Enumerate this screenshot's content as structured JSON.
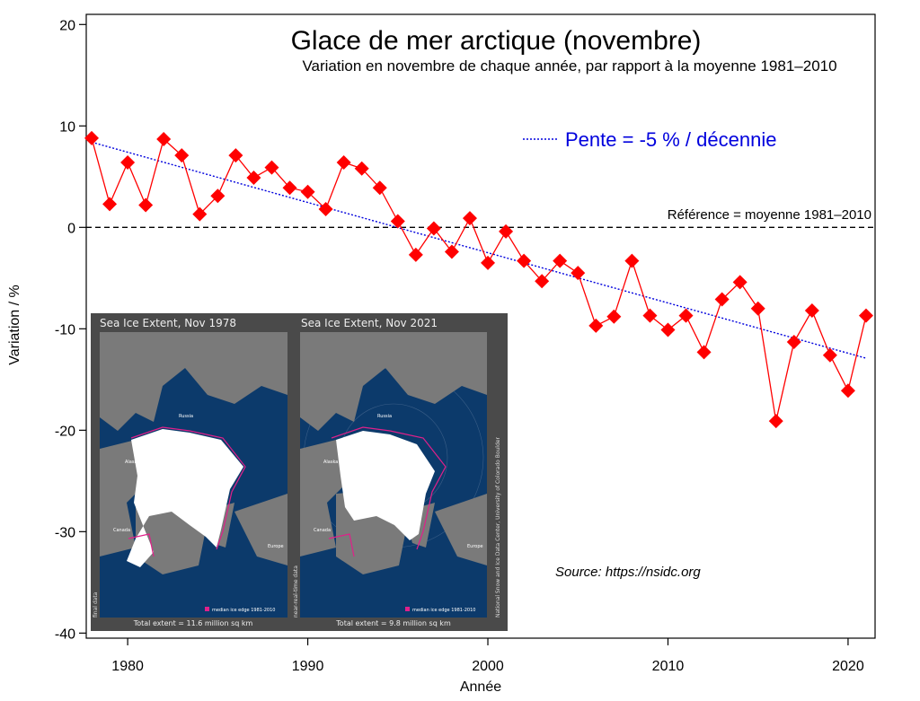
{
  "chart_data": {
    "type": "line",
    "title": "Glace de mer arctique (novembre)",
    "subtitle": "Variation en novembre de chaque année, par rapport à la moyenne 1981–2010",
    "xlabel": "Année",
    "ylabel": "Variation / %",
    "xlim": [
      1977.7,
      2021.5
    ],
    "ylim": [
      -40.5,
      21
    ],
    "x_ticks": [
      1980,
      1990,
      2000,
      2010,
      2020
    ],
    "y_ticks": [
      20,
      10,
      0,
      -10,
      -20,
      -30,
      -40
    ],
    "grid": false,
    "colors": {
      "series": "#ff0000",
      "trend": "#0000dd",
      "reference": "#000000"
    },
    "series": [
      {
        "years": [
          1978,
          1979,
          1980,
          1981,
          1982,
          1983,
          1984,
          1985,
          1986,
          1987,
          1988,
          1989,
          1990,
          1991,
          1992,
          1993,
          1994,
          1995,
          1996,
          1997,
          1998,
          1999,
          2000,
          2001,
          2002,
          2003,
          2004,
          2005,
          2006,
          2007,
          2008,
          2009,
          2010,
          2011,
          2012,
          2013,
          2014,
          2015,
          2016,
          2017,
          2018,
          2019,
          2020,
          2021
        ],
        "values": [
          8.8,
          2.3,
          6.4,
          2.2,
          8.7,
          7.1,
          1.3,
          3.1,
          7.1,
          4.9,
          5.9,
          3.9,
          3.5,
          1.8,
          6.4,
          5.8,
          3.9,
          0.6,
          -2.7,
          -0.1,
          -2.4,
          0.9,
          -3.5,
          -0.4,
          -3.3,
          -5.3,
          -3.3,
          -4.5,
          -9.7,
          -8.8,
          -3.3,
          -8.7,
          -10.1,
          -8.7,
          -12.3,
          -7.1,
          -5.4,
          -8.0,
          -19.1,
          -11.3,
          -8.2,
          -12.6,
          -16.1,
          -8.7
        ]
      }
    ],
    "trend": {
      "label": "Pente = -5 % / décennie",
      "start": [
        1978,
        8.4
      ],
      "end": [
        2021,
        -12.9
      ]
    },
    "reference": {
      "label": "Référence = moyenne 1981–2010",
      "value": 0
    },
    "legend_position": "top-right",
    "annotation": "Source: https://nsidc.org"
  },
  "inset": {
    "left": {
      "title": "Sea Ice Extent, Nov 1978",
      "side_label": "final data",
      "legend": "median ice edge 1981-2010",
      "total": "Total extent = 11.6 million sq km",
      "region_labels": [
        "Russia",
        "Alaska",
        "Canada",
        "Greenland",
        "Europe"
      ]
    },
    "right": {
      "title": "Sea Ice Extent, Nov 2021",
      "side_label": "near-real-time data",
      "legend": "median ice edge 1981-2010",
      "total": "Total extent = 9.8 million sq km",
      "region_labels": [
        "Russia",
        "Alaska",
        "Canada",
        "Greenland",
        "Europe"
      ]
    },
    "credit": "National Snow and Ice Data Center, University of Colorado Boulder"
  }
}
